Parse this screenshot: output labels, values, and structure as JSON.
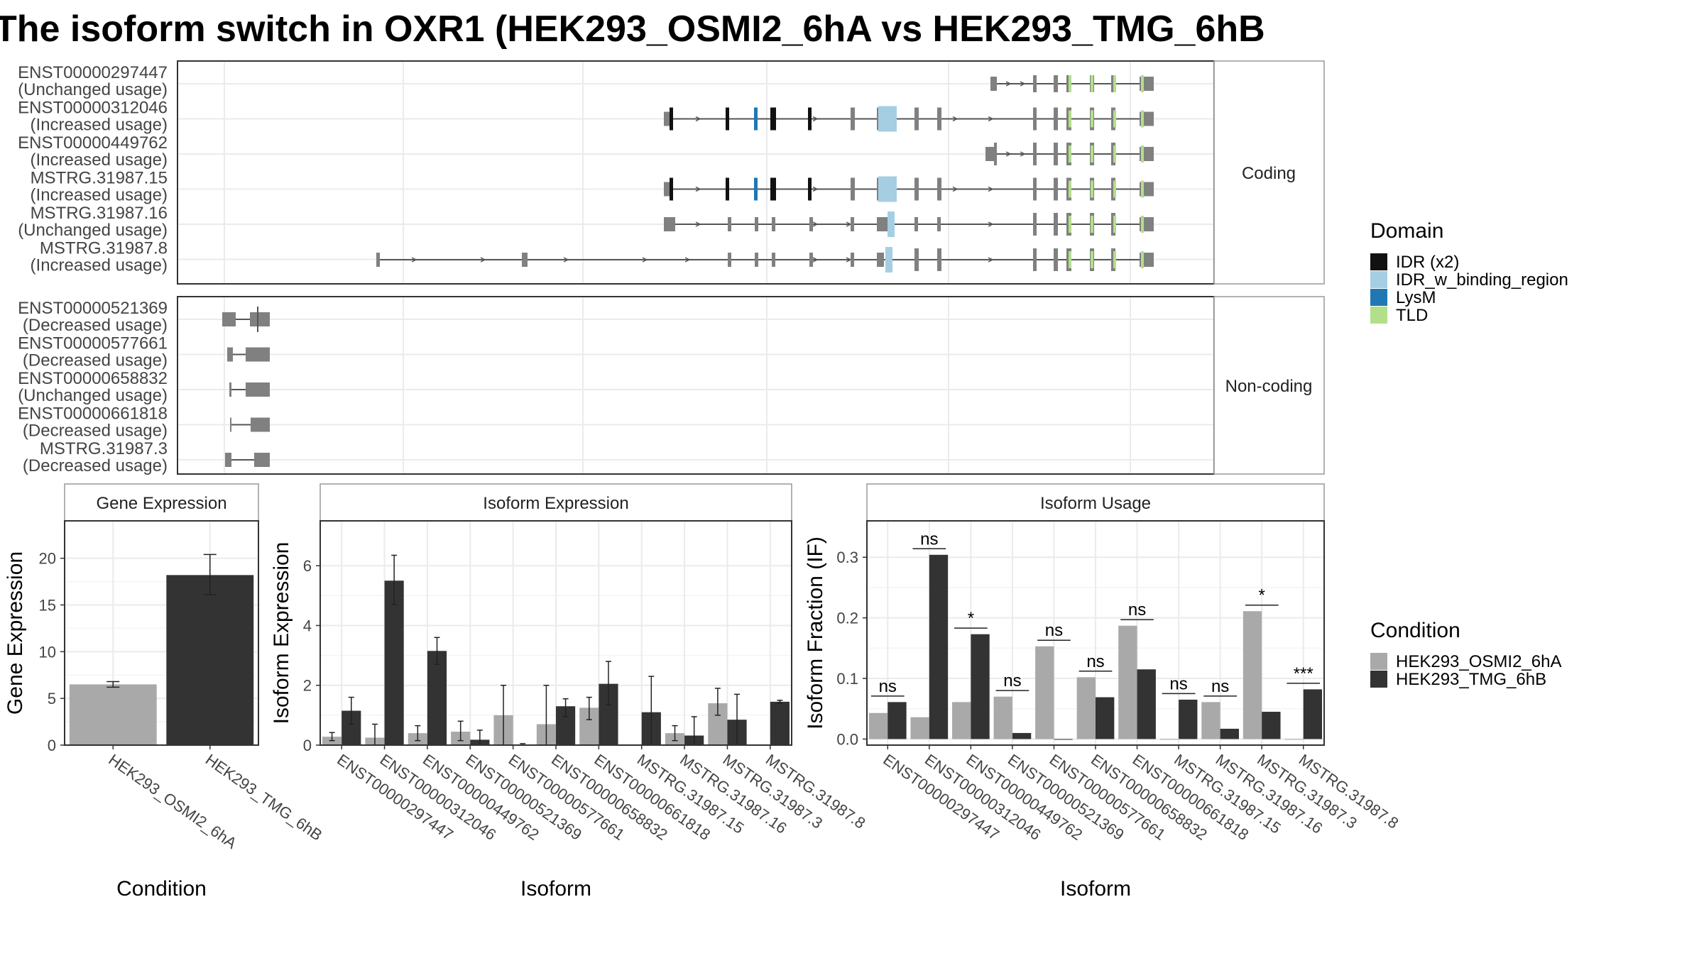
{
  "title": "The isoform switch in OXR1 (HEK293_OSMI2_6hA vs HEK293_TMG_6hB",
  "colors": {
    "cond1": "#a9a9a9",
    "cond2": "#333333",
    "exon": "#808080",
    "intron": "#555555",
    "grid": "#ebebeb",
    "panel_border": "#333333",
    "strip_fill": "#ffffff",
    "domains": {
      "IDR (x2)": "#111111",
      "IDR_w_binding_region": "#a6cee3",
      "LysM": "#1f78b4",
      "TLD": "#b2df8a"
    }
  },
  "structure": {
    "coding_strip": "Coding",
    "noncoding_strip": "Non-coding",
    "coding": [
      {
        "id": "ENST00000297447",
        "usage": "(Unchanged usage)"
      },
      {
        "id": "ENST00000312046",
        "usage": "(Increased usage)"
      },
      {
        "id": "ENST00000449762",
        "usage": "(Increased usage)"
      },
      {
        "id": "MSTRG.31987.15",
        "usage": "(Increased usage)"
      },
      {
        "id": "MSTRG.31987.16",
        "usage": "(Unchanged usage)"
      },
      {
        "id": "MSTRG.31987.8",
        "usage": "(Increased usage)"
      }
    ],
    "noncoding": [
      {
        "id": "ENST00000521369",
        "usage": "(Decreased usage)"
      },
      {
        "id": "ENST00000577661",
        "usage": "(Decreased usage)"
      },
      {
        "id": "ENST00000658832",
        "usage": "(Unchanged usage)"
      },
      {
        "id": "ENST00000661818",
        "usage": "(Decreased usage)"
      },
      {
        "id": "MSTRG.31987.3",
        "usage": "(Decreased usage)"
      }
    ]
  },
  "legend": {
    "domain_title": "Domain",
    "domain_items": [
      "IDR (x2)",
      "IDR_w_binding_region",
      "LysM",
      "TLD"
    ],
    "condition_title": "Condition",
    "condition_items": [
      "HEK293_OSMI2_6hA",
      "HEK293_TMG_6hB"
    ]
  },
  "chart_data": [
    {
      "type": "bar",
      "title": "Gene Expression",
      "xlabel": "Condition",
      "ylabel": "Gene Expression",
      "categories": [
        "HEK293_OSMI2_6hA",
        "HEK293_TMG_6hB"
      ],
      "values": [
        6.5,
        18.2
      ],
      "errors": [
        [
          6.2,
          6.8
        ],
        [
          16.1,
          20.4
        ]
      ],
      "ylim": [
        0,
        24
      ],
      "yticks": [
        0,
        5,
        10,
        15,
        20
      ]
    },
    {
      "type": "bar",
      "title": "Isoform Expression",
      "xlabel": "Isoform",
      "ylabel": "Isoform Expression",
      "categories": [
        "ENST00000297447",
        "ENST00000312046",
        "ENST00000449762",
        "ENST00000521369",
        "ENST00000577661",
        "ENST00000658832",
        "ENST00000661818",
        "MSTRG.31987.15",
        "MSTRG.31987.16",
        "MSTRG.31987.3",
        "MSTRG.31987.8"
      ],
      "series": [
        {
          "name": "HEK293_OSMI2_6hA",
          "values": [
            0.28,
            0.25,
            0.4,
            0.45,
            1.0,
            0.7,
            1.25,
            0.0,
            0.4,
            1.4,
            0.0
          ],
          "errors": [
            [
              0.15,
              0.42
            ],
            [
              0.0,
              0.7
            ],
            [
              0.15,
              0.65
            ],
            [
              0.15,
              0.8
            ],
            [
              0.0,
              2.0
            ],
            [
              0.0,
              2.0
            ],
            [
              0.85,
              1.6
            ],
            [
              0.0,
              0.0
            ],
            [
              0.15,
              0.65
            ],
            [
              1.0,
              1.9
            ],
            [
              0.0,
              0.0
            ]
          ]
        },
        {
          "name": "HEK293_TMG_6hB",
          "values": [
            1.15,
            5.5,
            3.15,
            0.18,
            0.02,
            1.3,
            2.05,
            1.1,
            0.32,
            0.85,
            1.45
          ],
          "errors": [
            [
              0.7,
              1.6
            ],
            [
              4.7,
              6.35
            ],
            [
              2.7,
              3.6
            ],
            [
              0.0,
              0.5
            ],
            [
              0.0,
              0.05
            ],
            [
              0.95,
              1.55
            ],
            [
              1.35,
              2.8
            ],
            [
              0.0,
              2.3
            ],
            [
              0.0,
              0.95
            ],
            [
              0.0,
              1.7
            ],
            [
              1.4,
              1.5
            ]
          ]
        }
      ],
      "ylim": [
        0,
        7.5
      ],
      "yticks": [
        0,
        2,
        4,
        6
      ]
    },
    {
      "type": "bar",
      "title": "Isoform Usage",
      "xlabel": "Isoform",
      "ylabel": "Isoform Fraction (IF)",
      "categories": [
        "ENST00000297447",
        "ENST00000312046",
        "ENST00000449762",
        "ENST00000521369",
        "ENST00000577661",
        "ENST00000658832",
        "ENST00000661818",
        "MSTRG.31987.15",
        "MSTRG.31987.16",
        "MSTRG.31987.3",
        "MSTRG.31987.8"
      ],
      "series": [
        {
          "name": "HEK293_OSMI2_6hA",
          "values": [
            0.043,
            0.036,
            0.061,
            0.07,
            0.153,
            0.102,
            0.187,
            0.0,
            0.061,
            0.211,
            0.0
          ]
        },
        {
          "name": "HEK293_TMG_6hB",
          "values": [
            0.061,
            0.304,
            0.173,
            0.01,
            0.0,
            0.069,
            0.115,
            0.065,
            0.017,
            0.045,
            0.082
          ]
        }
      ],
      "significance": [
        "ns",
        "ns",
        "*",
        "ns",
        "ns",
        "ns",
        "ns",
        "ns",
        "ns",
        "*",
        "***"
      ],
      "ylim": [
        -0.01,
        0.36
      ],
      "yticks": [
        0.0,
        0.1,
        0.2,
        0.3
      ]
    }
  ]
}
